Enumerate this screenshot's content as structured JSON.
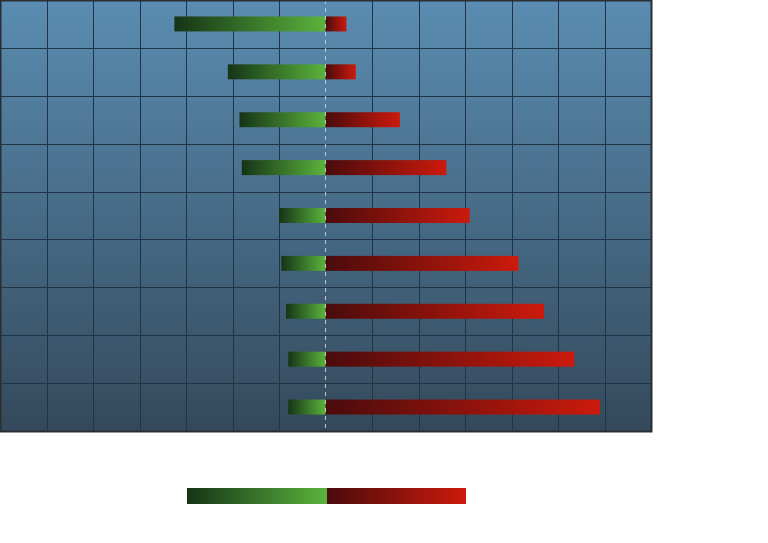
{
  "chart_data": {
    "type": "bar",
    "orientation": "horizontal",
    "stacked": "diverging",
    "xlim": [
      -7,
      7
    ],
    "grid": true,
    "legend": "bottom",
    "series": [
      {
        "values": [
          -3.25,
          -2.1,
          -1.85,
          -1.8,
          -1.0,
          -0.95,
          -0.85,
          -0.8,
          -0.8
        ],
        "colors": {
          "dark": "#153417",
          "light": "#5bb33c"
        }
      },
      {
        "values": [
          0.45,
          0.65,
          1.6,
          2.6,
          3.1,
          4.15,
          4.7,
          5.35,
          5.9
        ],
        "colors": {
          "dark": "#4a0b0c",
          "light": "#cc1a0c"
        }
      }
    ]
  },
  "colors": {
    "plot_top": "#5a8db2",
    "plot_bottom": "#34495b",
    "grid": "#1f3447",
    "border": "#2a2e33",
    "zero_line": "#b9c9d6"
  }
}
